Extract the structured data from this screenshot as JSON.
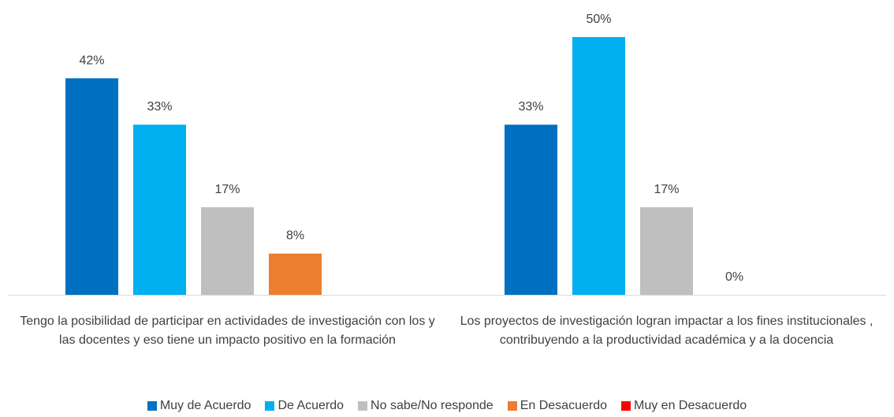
{
  "chart_data": {
    "type": "bar",
    "categories": [
      "Tengo la posibilidad de participar en actividades de investigación con los y las docentes y eso tiene un impacto positivo en la formación",
      "Los proyectos de investigación logran impactar a los fines institucionales , contribuyendo a la productividad académica y a la docencia"
    ],
    "series": [
      {
        "name": "Muy de Acuerdo",
        "color": "#0070c0",
        "values": [
          42,
          33
        ],
        "value_labels": [
          "42%",
          "33%"
        ]
      },
      {
        "name": "De Acuerdo",
        "color": "#00b0f0",
        "values": [
          33,
          50
        ],
        "value_labels": [
          "33%",
          "50%"
        ]
      },
      {
        "name": "No sabe/No responde",
        "color": "#bfbfbf",
        "values": [
          17,
          17
        ],
        "value_labels": [
          "17%",
          "17%"
        ]
      },
      {
        "name": "En Desacuerdo",
        "color": "#ed7d31",
        "values": [
          8,
          0
        ],
        "value_labels": [
          "8%",
          "0%"
        ]
      },
      {
        "name": "Muy en Desacuerdo",
        "color": "#ff0000",
        "values": [
          null,
          null
        ],
        "value_labels": [
          null,
          null
        ]
      }
    ]
  }
}
